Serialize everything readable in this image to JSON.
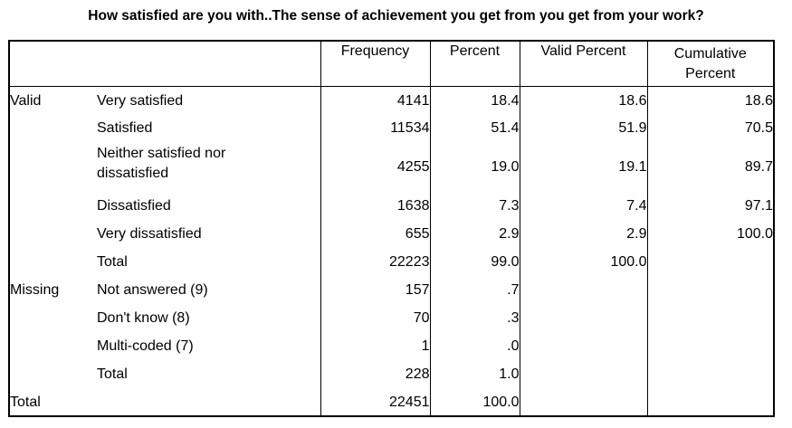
{
  "title": "How satisfied are you with..The sense of achievement you get from you get from your work?",
  "headers": {
    "frequency": "Frequency",
    "percent": "Percent",
    "valid_percent": "Valid Percent",
    "cumulative_line1": "Cumulative",
    "cumulative_line2": "Percent"
  },
  "groups": {
    "valid": "Valid",
    "missing": "Missing",
    "total": "Total"
  },
  "rows": [
    {
      "category": "Very satisfied",
      "frequency": "4141",
      "percent": "18.4",
      "valid_percent": "18.6",
      "cumulative": "18.6"
    },
    {
      "category": "Satisfied",
      "frequency": "11534",
      "percent": "51.4",
      "valid_percent": "51.9",
      "cumulative": "70.5"
    },
    {
      "category_line1": "Neither satisfied nor",
      "category_line2": "dissatisfied",
      "frequency": "4255",
      "percent": "19.0",
      "valid_percent": "19.1",
      "cumulative": "89.7"
    },
    {
      "category": "Dissatisfied",
      "frequency": "1638",
      "percent": "7.3",
      "valid_percent": "7.4",
      "cumulative": "97.1"
    },
    {
      "category": "Very dissatisfied",
      "frequency": "655",
      "percent": "2.9",
      "valid_percent": "2.9",
      "cumulative": "100.0"
    },
    {
      "category": "Total",
      "frequency": "22223",
      "percent": "99.0",
      "valid_percent": "100.0"
    },
    {
      "category": "Not answered (9)",
      "frequency": "157",
      "percent": ".7"
    },
    {
      "category": "Don't know (8)",
      "frequency": "70",
      "percent": ".3"
    },
    {
      "category": "Multi-coded (7)",
      "frequency": "1",
      "percent": ".0"
    },
    {
      "category": "Total",
      "frequency": "228",
      "percent": "1.0"
    }
  ],
  "grand_total": {
    "frequency": "22451",
    "percent": "100.0"
  }
}
